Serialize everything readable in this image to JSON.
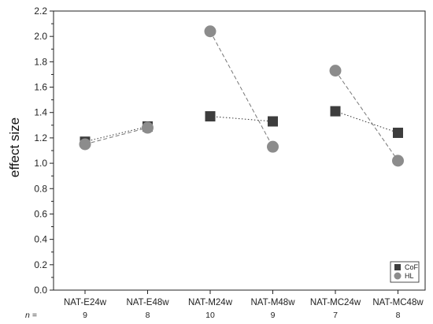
{
  "chart_data": {
    "type": "scatter",
    "categories": [
      "NAT-E24w",
      "NAT-E48w",
      "NAT-M24w",
      "NAT-M48w",
      "NAT-MC24w",
      "NAT-MC48w"
    ],
    "n_prefix": "n =",
    "n_values": [
      "9",
      "8",
      "10",
      "9",
      "7",
      "8"
    ],
    "series": [
      {
        "name": "CoF",
        "marker": "square",
        "color": "#3d3d3d",
        "line": "dotted",
        "values": [
          1.17,
          1.29,
          1.37,
          1.33,
          1.41,
          1.24
        ]
      },
      {
        "name": "HL",
        "marker": "circle",
        "color": "#8c8c8c",
        "line": "dashed",
        "values": [
          1.15,
          1.28,
          2.04,
          1.13,
          1.73,
          1.02
        ]
      }
    ],
    "connect_pairs": [
      [
        0,
        1
      ],
      [
        2,
        3
      ],
      [
        4,
        5
      ]
    ],
    "ylabel": "effect size",
    "ylim": [
      0.0,
      2.2
    ],
    "yticks": [
      "0.0",
      "0.2",
      "0.4",
      "0.6",
      "0.8",
      "1.0",
      "1.2",
      "1.4",
      "1.6",
      "1.8",
      "2.0",
      "2.2"
    ],
    "legend_position": "bottom-right",
    "grid": false
  }
}
